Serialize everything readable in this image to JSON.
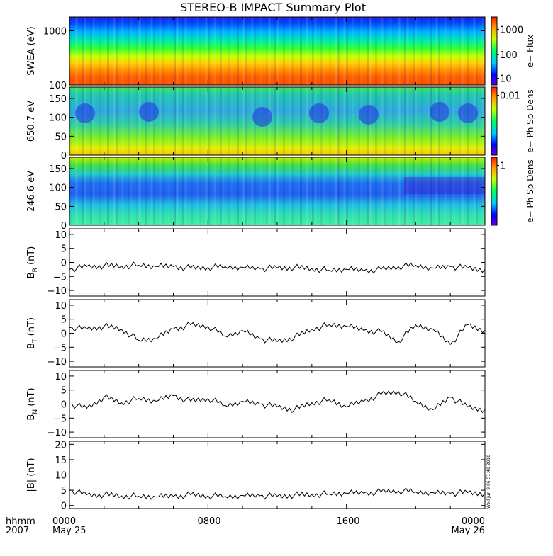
{
  "title": "STEREO-B IMPACT Summary Plot",
  "timestamp": "Wed Jun  9 06:51:48 2010",
  "x_axis": {
    "row1_labels": [
      "hhmm",
      "0000",
      "0800",
      "1600",
      "0000"
    ],
    "row2_labels": [
      "2007",
      "May 25",
      "May 26"
    ]
  },
  "chart_data": [
    {
      "type": "heatmap",
      "ylabel": "SWEA (eV)",
      "yscale": "log",
      "ylim": [
        100,
        1800
      ],
      "yticks": [
        "1000",
        "100"
      ],
      "colorbar": {
        "label": "e− Flux",
        "scale": "log",
        "ticks": [
          "1000",
          "100",
          "10"
        ]
      },
      "description_values": {
        "energy_eV": [
          100,
          200,
          400,
          700,
          1000,
          1500
        ],
        "flux_rel": [
          3000,
          800,
          120,
          40,
          15,
          8
        ]
      }
    },
    {
      "type": "heatmap",
      "ylabel": "650.7 eV",
      "ylim": [
        0,
        180
      ],
      "yticks": [
        "150",
        "100",
        "50",
        "0"
      ],
      "colorbar": {
        "label": "e− Ph Sp Dens",
        "ticks": [
          "0.01"
        ]
      }
    },
    {
      "type": "heatmap",
      "ylabel": "246.6 eV",
      "ylim": [
        0,
        180
      ],
      "yticks": [
        "150",
        "100",
        "50",
        "0"
      ],
      "colorbar": {
        "label": "e− Ph Sp Dens",
        "ticks": [
          "1"
        ]
      }
    },
    {
      "type": "line",
      "ylabel": "B",
      "ylabel_sub": "R",
      "ylabel_unit": "(nT)",
      "ylim": [
        -12,
        12
      ],
      "yticks": [
        "10",
        "5",
        "0",
        "−5",
        "−10"
      ],
      "x_hours": [
        0,
        1,
        2,
        3,
        4,
        5,
        6,
        7,
        8,
        9,
        10,
        11,
        12,
        13,
        14,
        15,
        16,
        17,
        18,
        19,
        20,
        21,
        22,
        23,
        24
      ],
      "values": [
        -2.5,
        -1.5,
        -1.2,
        -1.3,
        -1.0,
        -1.5,
        -1.5,
        -2.0,
        -1.8,
        -1.5,
        -1.7,
        -2.2,
        -2.0,
        -1.8,
        -2.2,
        -2.8,
        -2.5,
        -3.0,
        -2.5,
        -1.5,
        -1.0,
        -2.0,
        -1.5,
        -2.0,
        -2.5
      ]
    },
    {
      "type": "line",
      "ylabel": "B",
      "ylabel_sub": "T",
      "ylabel_unit": "(nT)",
      "ylim": [
        -12,
        12
      ],
      "yticks": [
        "10",
        "5",
        "0",
        "−5",
        "−10"
      ],
      "x_hours": [
        0,
        1,
        2,
        3,
        4,
        5,
        6,
        7,
        8,
        9,
        10,
        11,
        12,
        13,
        14,
        15,
        16,
        17,
        18,
        19,
        20,
        21,
        22,
        23,
        24
      ],
      "values": [
        2.0,
        1.5,
        2.5,
        1.5,
        -2.5,
        -2.0,
        1.5,
        3.0,
        2.5,
        -1.0,
        1.0,
        -2.0,
        -3.0,
        -1.5,
        1.5,
        3.0,
        2.5,
        1.0,
        0.5,
        -3.0,
        3.0,
        1.5,
        -4.0,
        3.0,
        1.0
      ]
    },
    {
      "type": "line",
      "ylabel": "B",
      "ylabel_sub": "N",
      "ylabel_unit": "(nT)",
      "ylim": [
        -12,
        12
      ],
      "yticks": [
        "10",
        "5",
        "0",
        "−5",
        "−10"
      ],
      "x_hours": [
        0,
        1,
        2,
        3,
        4,
        5,
        6,
        7,
        8,
        9,
        10,
        11,
        12,
        13,
        14,
        15,
        16,
        17,
        18,
        19,
        20,
        21,
        22,
        23,
        24
      ],
      "values": [
        0.0,
        -1.5,
        2.5,
        0.5,
        2.0,
        1.0,
        3.0,
        1.0,
        2.0,
        -0.5,
        1.0,
        0.0,
        -1.0,
        -2.0,
        0.5,
        1.5,
        -1.0,
        1.0,
        3.5,
        4.5,
        1.0,
        -2.0,
        2.5,
        -1.0,
        -2.0
      ]
    },
    {
      "type": "line",
      "ylabel": "|B|",
      "ylabel_unit": "(nT)",
      "ylim": [
        -1,
        21
      ],
      "yticks": [
        "20",
        "15",
        "10",
        "5",
        "0"
      ],
      "x_hours": [
        0,
        1,
        2,
        3,
        4,
        5,
        6,
        7,
        8,
        9,
        10,
        11,
        12,
        13,
        14,
        15,
        16,
        17,
        18,
        19,
        20,
        21,
        22,
        23,
        24
      ],
      "values": [
        5.0,
        3.5,
        3.5,
        3.2,
        3.0,
        2.8,
        3.0,
        3.5,
        3.2,
        3.0,
        3.3,
        3.2,
        3.0,
        3.4,
        3.6,
        3.8,
        4.0,
        4.0,
        4.5,
        4.8,
        4.5,
        4.2,
        4.0,
        4.2,
        4.0
      ]
    }
  ]
}
